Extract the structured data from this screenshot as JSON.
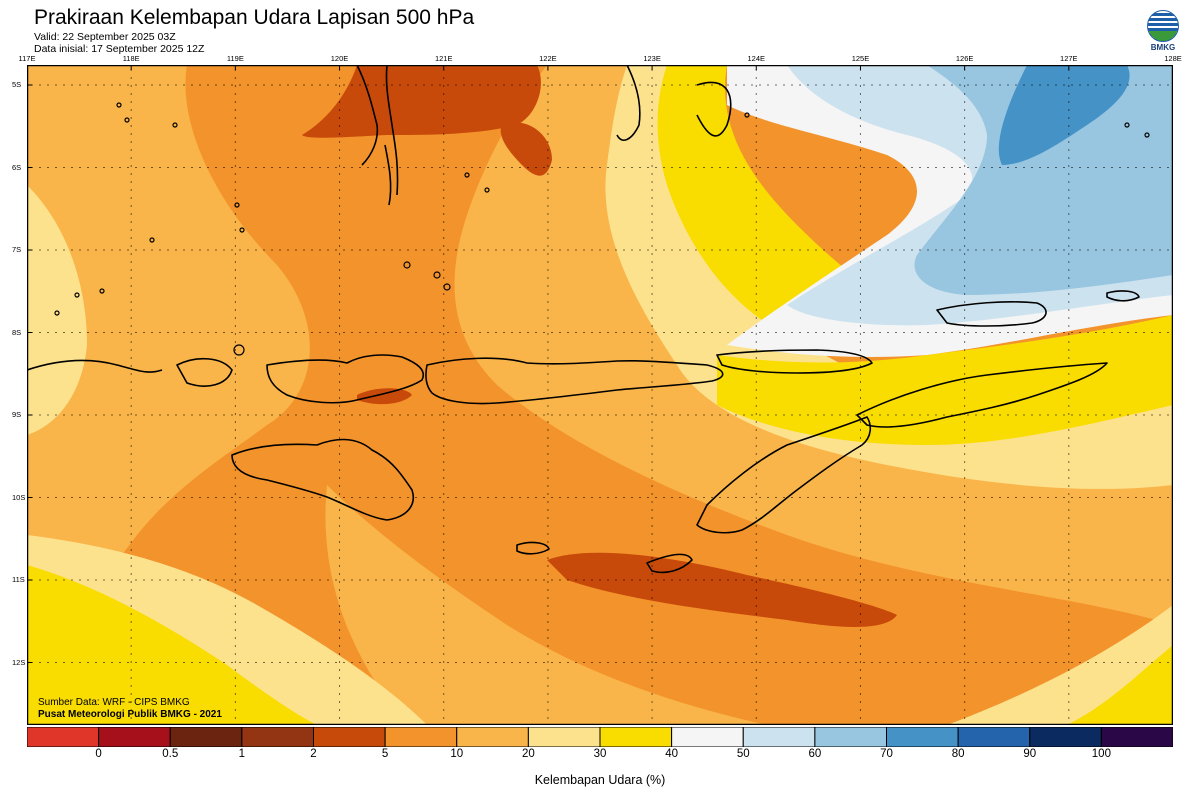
{
  "header": {
    "title": "Prakiraan Kelembapan Udara Lapisan 500 hPa",
    "valid": "Valid: 22 September 2025 03Z",
    "init": "Data inisial: 17 September 2025 12Z"
  },
  "logo": {
    "text": "BMKG",
    "icon": "bmkg-logo-icon"
  },
  "map": {
    "lon_labels": [
      "117E",
      "118E",
      "119E",
      "120E",
      "121E",
      "122E",
      "123E",
      "124E",
      "125E",
      "126E",
      "127E",
      "128E"
    ],
    "lat_labels": [
      "5S",
      "6S",
      "7S",
      "8S",
      "9S",
      "10S",
      "11S",
      "12S"
    ]
  },
  "footer": {
    "source": "Sumber Data: WRF - CIPS BMKG",
    "publisher": "Pusat Meteorologi Publik BMKG - 2021"
  },
  "colorbar": {
    "label": "Kelembapan Udara (%)",
    "ticks": [
      "0",
      "0.5",
      "1",
      "2",
      "5",
      "10",
      "20",
      "30",
      "40",
      "50",
      "60",
      "70",
      "80",
      "90",
      "100"
    ],
    "colors": [
      "#e0362a",
      "#a6101a",
      "#6a2410",
      "#933412",
      "#c84a0a",
      "#f3932b",
      "#f9b54a",
      "#fde28e",
      "#f9dc00",
      "#f5f5f5",
      "#cde2ef",
      "#98c6e0",
      "#4592c6",
      "#2364ad",
      "#0a2a60",
      "#2a0848"
    ],
    "ocean_colors": {
      "brown": "#c84a0a",
      "orange": "#f3932b",
      "light_orange": "#f9b54a",
      "pale": "#fde28e",
      "yellow": "#f9dc00",
      "white": "#f5f5f5",
      "pale_blue": "#cde2ef",
      "light_blue": "#98c6e0",
      "blue": "#4592c6"
    }
  }
}
